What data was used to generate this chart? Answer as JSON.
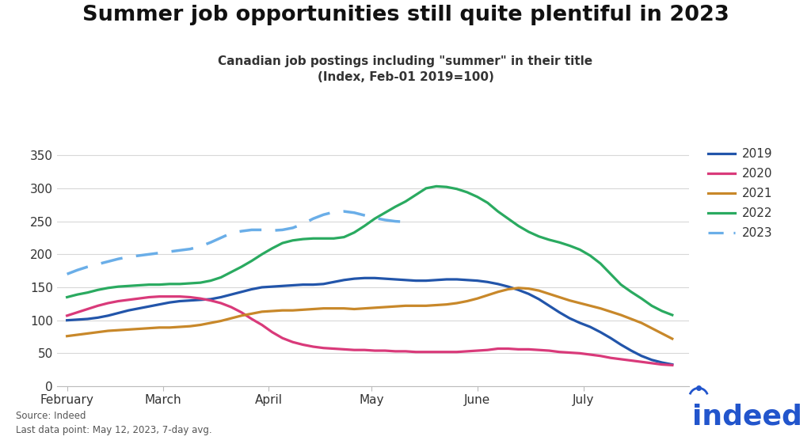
{
  "title": "Summer job opportunities still quite plentiful in 2023",
  "subtitle": "Canadian job postings including \"summer\" in their title\n(Index, Feb-01 2019=100)",
  "source": "Source: Indeed\nLast data point: May 12, 2023, 7-day avg.",
  "yticks": [
    0,
    50,
    100,
    150,
    200,
    250,
    300,
    350
  ],
  "xtick_labels": [
    "February",
    "March",
    "April",
    "May",
    "June",
    "July"
  ],
  "background_color": "#ffffff",
  "series": {
    "2019": {
      "color": "#2255aa",
      "linestyle": "solid",
      "linewidth": 2.3,
      "x": [
        0,
        3,
        6,
        9,
        12,
        15,
        18,
        21,
        24,
        27,
        30,
        33,
        36,
        39,
        42,
        45,
        48,
        51,
        54,
        57,
        60,
        63,
        66,
        69,
        72,
        75,
        78,
        81,
        84,
        87,
        90,
        93,
        96,
        99,
        102,
        105,
        108,
        111,
        114,
        117,
        120,
        123,
        126,
        129,
        132,
        135,
        138,
        141,
        144,
        147,
        150,
        153,
        156,
        159,
        162,
        165,
        168,
        171,
        174,
        177
      ],
      "y": [
        100,
        101,
        102,
        104,
        107,
        111,
        115,
        118,
        121,
        124,
        127,
        129,
        130,
        131,
        132,
        135,
        139,
        143,
        147,
        150,
        151,
        152,
        153,
        154,
        154,
        155,
        158,
        161,
        163,
        164,
        164,
        163,
        162,
        161,
        160,
        160,
        161,
        162,
        162,
        161,
        160,
        158,
        155,
        151,
        146,
        140,
        132,
        122,
        112,
        103,
        96,
        90,
        82,
        73,
        63,
        54,
        46,
        40,
        36,
        33
      ]
    },
    "2020": {
      "color": "#d93a7a",
      "linestyle": "solid",
      "linewidth": 2.3,
      "x": [
        0,
        3,
        6,
        9,
        12,
        15,
        18,
        21,
        24,
        27,
        30,
        33,
        36,
        39,
        42,
        45,
        48,
        51,
        54,
        57,
        60,
        63,
        66,
        69,
        72,
        75,
        78,
        81,
        84,
        87,
        90,
        93,
        96,
        99,
        102,
        105,
        108,
        111,
        114,
        117,
        120,
        123,
        126,
        129,
        132,
        135,
        138,
        141,
        144,
        147,
        150,
        153,
        156,
        159,
        162,
        165,
        168,
        171,
        174,
        177
      ],
      "y": [
        107,
        112,
        117,
        122,
        126,
        129,
        131,
        133,
        135,
        136,
        136,
        136,
        135,
        133,
        130,
        126,
        120,
        112,
        102,
        93,
        82,
        73,
        67,
        63,
        60,
        58,
        57,
        56,
        55,
        55,
        54,
        54,
        53,
        53,
        52,
        52,
        52,
        52,
        52,
        53,
        54,
        55,
        57,
        57,
        56,
        56,
        55,
        54,
        52,
        51,
        50,
        48,
        46,
        43,
        41,
        39,
        37,
        35,
        33,
        32
      ]
    },
    "2021": {
      "color": "#c8882a",
      "linestyle": "solid",
      "linewidth": 2.3,
      "x": [
        0,
        3,
        6,
        9,
        12,
        15,
        18,
        21,
        24,
        27,
        30,
        33,
        36,
        39,
        42,
        45,
        48,
        51,
        54,
        57,
        60,
        63,
        66,
        69,
        72,
        75,
        78,
        81,
        84,
        87,
        90,
        93,
        96,
        99,
        102,
        105,
        108,
        111,
        114,
        117,
        120,
        123,
        126,
        129,
        132,
        135,
        138,
        141,
        144,
        147,
        150,
        153,
        156,
        159,
        162,
        165,
        168,
        171,
        174,
        177
      ],
      "y": [
        76,
        78,
        80,
        82,
        84,
        85,
        86,
        87,
        88,
        89,
        89,
        90,
        91,
        93,
        96,
        99,
        103,
        107,
        110,
        113,
        114,
        115,
        115,
        116,
        117,
        118,
        118,
        118,
        117,
        118,
        119,
        120,
        121,
        122,
        122,
        122,
        123,
        124,
        126,
        129,
        133,
        138,
        143,
        147,
        149,
        148,
        145,
        140,
        135,
        130,
        126,
        122,
        118,
        113,
        108,
        102,
        96,
        88,
        80,
        72
      ]
    },
    "2022": {
      "color": "#2aaa60",
      "linestyle": "solid",
      "linewidth": 2.3,
      "x": [
        0,
        3,
        6,
        9,
        12,
        15,
        18,
        21,
        24,
        27,
        30,
        33,
        36,
        39,
        42,
        45,
        48,
        51,
        54,
        57,
        60,
        63,
        66,
        69,
        72,
        75,
        78,
        81,
        84,
        87,
        90,
        93,
        96,
        99,
        102,
        105,
        108,
        111,
        114,
        117,
        120,
        123,
        126,
        129,
        132,
        135,
        138,
        141,
        144,
        147,
        150,
        153,
        156,
        159,
        162,
        165,
        168,
        171,
        174,
        177
      ],
      "y": [
        135,
        139,
        142,
        146,
        149,
        151,
        152,
        153,
        154,
        154,
        155,
        155,
        156,
        157,
        160,
        165,
        173,
        181,
        190,
        200,
        209,
        217,
        221,
        223,
        224,
        224,
        224,
        226,
        233,
        243,
        254,
        263,
        272,
        280,
        290,
        300,
        303,
        302,
        299,
        294,
        287,
        278,
        265,
        254,
        243,
        234,
        227,
        222,
        218,
        213,
        207,
        198,
        186,
        170,
        154,
        143,
        133,
        122,
        114,
        108
      ]
    },
    "2023": {
      "color": "#6aaee8",
      "linestyle": "dashed",
      "linewidth": 2.5,
      "x": [
        0,
        3,
        6,
        9,
        12,
        15,
        18,
        21,
        24,
        27,
        30,
        33,
        36,
        39,
        42,
        45,
        48,
        51,
        54,
        57,
        60,
        63,
        66,
        69,
        72,
        75,
        78,
        81,
        84,
        87,
        90,
        93,
        96,
        99
      ],
      "y": [
        170,
        176,
        181,
        185,
        189,
        193,
        196,
        198,
        200,
        202,
        204,
        206,
        208,
        212,
        218,
        225,
        232,
        235,
        237,
        237,
        236,
        237,
        240,
        246,
        254,
        260,
        264,
        265,
        263,
        259,
        255,
        252,
        250,
        249
      ]
    }
  },
  "legend_order": [
    "2019",
    "2020",
    "2021",
    "2022",
    "2023"
  ],
  "legend_colors": {
    "2019": "#2255aa",
    "2020": "#d93a7a",
    "2021": "#c8882a",
    "2022": "#2aaa60",
    "2023": "#6aaee8"
  },
  "ylim": [
    0,
    370
  ],
  "xlim": [
    -3,
    182
  ]
}
